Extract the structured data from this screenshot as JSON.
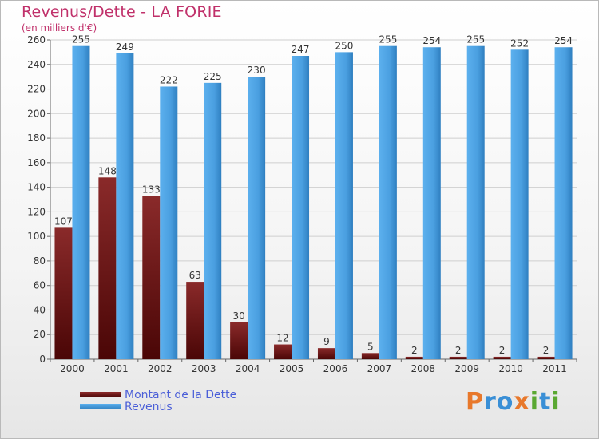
{
  "chart_data": {
    "type": "bar",
    "title": "Revenus/Dette - LA FORIE",
    "subtitle": "(en milliers d'€)",
    "categories": [
      "2000",
      "2001",
      "2002",
      "2003",
      "2004",
      "2005",
      "2006",
      "2007",
      "2008",
      "2009",
      "2010",
      "2011"
    ],
    "series": [
      {
        "name": "Montant de la Dette",
        "values": [
          107,
          148,
          133,
          63,
          30,
          12,
          9,
          5,
          2,
          2,
          2,
          2
        ],
        "color": "#7a1a1a"
      },
      {
        "name": "Revenus",
        "values": [
          255,
          249,
          222,
          225,
          230,
          247,
          250,
          255,
          254,
          255,
          252,
          254
        ],
        "color": "#4aa3e6"
      }
    ],
    "ylim": [
      0,
      260
    ],
    "yticks": [
      0,
      20,
      40,
      60,
      80,
      100,
      120,
      140,
      160,
      180,
      200,
      220,
      240,
      260
    ],
    "grid": true,
    "legend_position": "bottom-left"
  },
  "brand": {
    "letters": [
      "P",
      "r",
      "o",
      "x",
      "i",
      "t",
      "i"
    ],
    "colors": [
      "#e8782b",
      "#3a8fd6",
      "#3a8fd6",
      "#e8782b",
      "#5aa832",
      "#3a8fd6",
      "#5aa832"
    ]
  }
}
